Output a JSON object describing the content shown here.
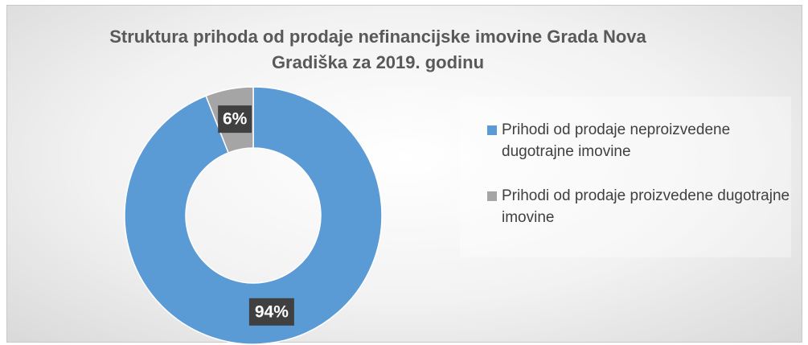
{
  "chart_data": {
    "type": "donut",
    "title": "Struktura prihoda od prodaje nefinancijske imovine Grada Nova Gradiška za 2019. godinu",
    "categories": [
      "Prihodi od prodaje neproizvedene dugotrajne imovine",
      "Prihodi od prodaje proizvedene dugotrajne imovine"
    ],
    "values": [
      94,
      6
    ],
    "value_labels": [
      "94%",
      "6%"
    ],
    "colors": [
      "#5b9bd5",
      "#a5a5a5"
    ],
    "legend": "right"
  }
}
